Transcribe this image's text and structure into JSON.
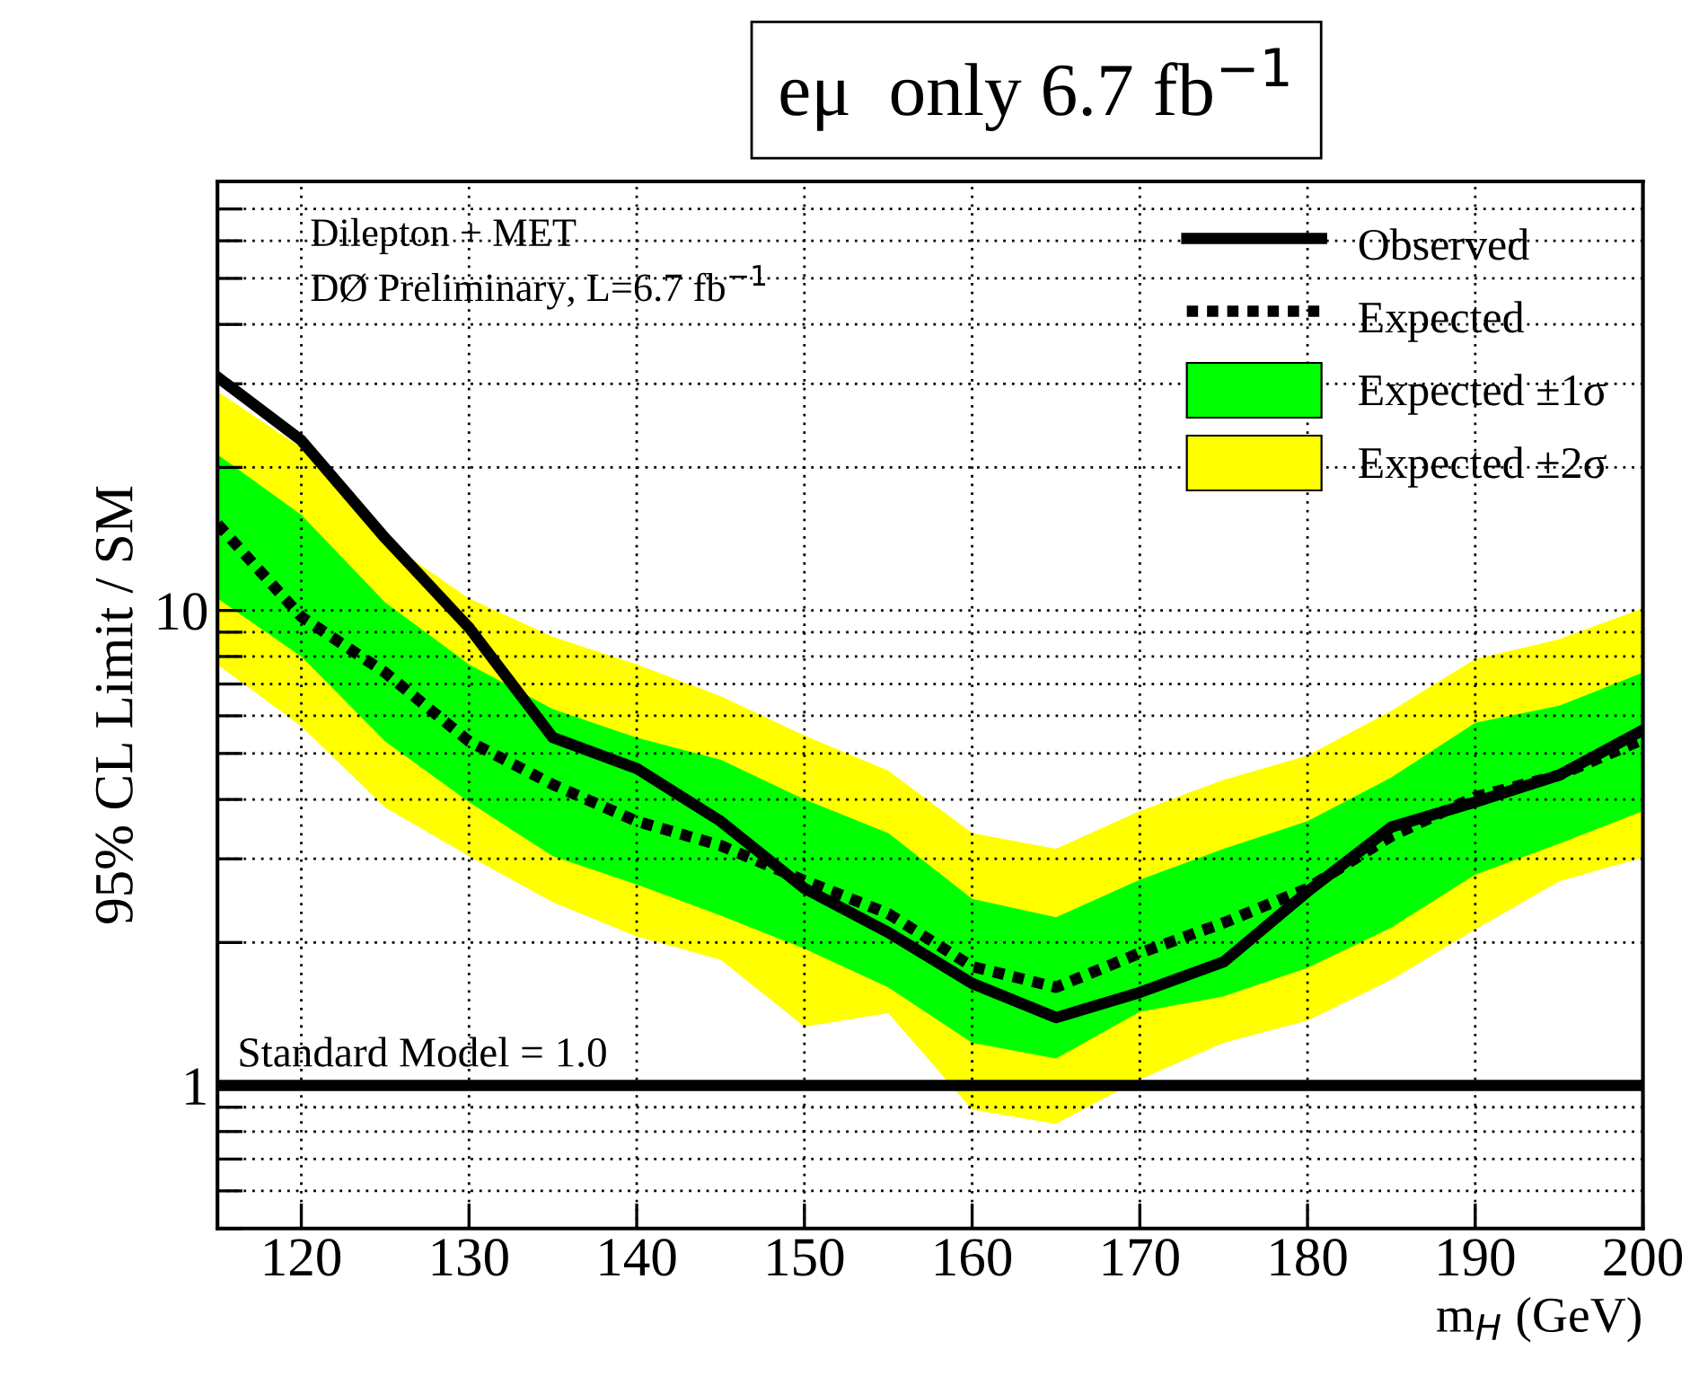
{
  "chart_data": {
    "type": "line",
    "title": "eμ  only 6.7 fb$^{−1}$",
    "xlabel": "m$_{H}$ (GeV)",
    "ylabel": "95% CL Limit / SM",
    "annotations": [
      "Dilepton + MET",
      "DØ Preliminary, L=6.7 fb$^{−1}$"
    ],
    "x": [
      115,
      120,
      125,
      130,
      135,
      140,
      145,
      150,
      155,
      160,
      165,
      170,
      175,
      180,
      185,
      190,
      195,
      200
    ],
    "series": [
      {
        "name": "Observed",
        "type": "line",
        "color": "#000000",
        "line_style": "solid",
        "values": [
          31,
          22.8,
          14.2,
          9.2,
          5.4,
          4.65,
          3.6,
          2.6,
          2.1,
          1.64,
          1.39,
          1.57,
          1.82,
          2.56,
          3.5,
          3.95,
          4.5,
          5.6
        ]
      },
      {
        "name": "Expected",
        "type": "line",
        "color": "#000000",
        "line_style": "dotted",
        "values": [
          15.2,
          9.7,
          7.4,
          5.3,
          4.3,
          3.6,
          3.2,
          2.7,
          2.3,
          1.78,
          1.61,
          1.9,
          2.2,
          2.6,
          3.35,
          4.05,
          4.5,
          5.35
        ]
      },
      {
        "name": "Expected ±1σ",
        "type": "area",
        "color": "#00ff00",
        "values": [
          null,
          null,
          null,
          null,
          null,
          null,
          null,
          null,
          null,
          null,
          null,
          null,
          null,
          null,
          null,
          null,
          null,
          null
        ],
        "upper": [
          21.3,
          15.9,
          10.4,
          7.7,
          6.2,
          5.4,
          4.85,
          4.0,
          3.4,
          2.47,
          2.26,
          2.71,
          3.15,
          3.6,
          4.45,
          5.8,
          6.3,
          7.4
        ],
        "lower": [
          10.6,
          8.0,
          5.3,
          3.95,
          3.04,
          2.65,
          2.28,
          1.94,
          1.61,
          1.23,
          1.14,
          1.43,
          1.54,
          1.77,
          2.15,
          2.78,
          3.23,
          3.78
        ]
      },
      {
        "name": "Expected ±2σ",
        "type": "area",
        "color": "#ffff00",
        "values": [
          null,
          null,
          null,
          null,
          null,
          null,
          null,
          null,
          null,
          null,
          null,
          null,
          null,
          null,
          null,
          null,
          null,
          null
        ],
        "upper": [
          28.9,
          22,
          14,
          10.6,
          8.8,
          7.7,
          6.6,
          5.45,
          4.6,
          3.4,
          3.15,
          3.78,
          4.4,
          4.95,
          6.15,
          7.9,
          8.7,
          10.1
        ],
        "lower": [
          7.7,
          5.7,
          3.85,
          3.04,
          2.43,
          2.06,
          1.84,
          1.33,
          1.42,
          0.89,
          0.83,
          1.03,
          1.23,
          1.37,
          1.67,
          2.13,
          2.69,
          3.02
        ]
      }
    ],
    "ref_lines": [
      {
        "axis": "y",
        "value": 1,
        "label": "Standard Model = 1.0",
        "color": "#000000"
      }
    ],
    "log": "y",
    "xlim": [
      115,
      200
    ],
    "ylim": [
      0.5,
      80
    ],
    "xticks": [
      120,
      130,
      140,
      150,
      160,
      170,
      180,
      190,
      200
    ],
    "yticks": [
      {
        "value": 0.5,
        "label": null
      },
      {
        "value": 0.6,
        "label": null
      },
      {
        "value": 0.7,
        "label": null
      },
      {
        "value": 0.8,
        "label": null
      },
      {
        "value": 0.9,
        "label": null
      },
      1,
      {
        "value": 2,
        "label": null
      },
      {
        "value": 3,
        "label": null
      },
      {
        "value": 4,
        "label": null
      },
      {
        "value": 5,
        "label": null
      },
      {
        "value": 6,
        "label": null
      },
      {
        "value": 7,
        "label": null
      },
      {
        "value": 8,
        "label": null
      },
      {
        "value": 9,
        "label": null
      },
      10,
      {
        "value": 20,
        "label": null
      },
      {
        "value": 30,
        "label": null
      },
      {
        "value": 40,
        "label": null
      },
      {
        "value": 50,
        "label": null
      },
      {
        "value": 60,
        "label": null
      },
      {
        "value": 70,
        "label": null
      },
      {
        "value": 80,
        "label": null
      }
    ],
    "grid": true,
    "legend": "top right",
    "marker": "none"
  }
}
